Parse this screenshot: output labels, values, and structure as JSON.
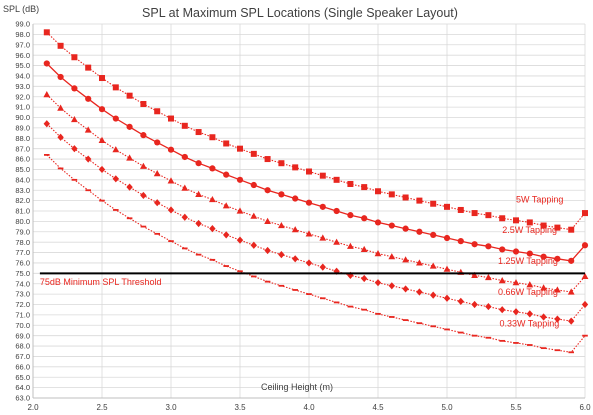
{
  "chart_data": {
    "type": "line",
    "title": "SPL at Maximum SPL Locations (Single Speaker Layout)",
    "xlabel": "Ceiling Height (m)",
    "ylabel": "SPL (dB)",
    "xlim": [
      2.0,
      6.0
    ],
    "ylim": [
      63.0,
      99.0
    ],
    "x_ticks": [
      2.0,
      2.5,
      3.0,
      3.5,
      4.0,
      4.5,
      5.0,
      5.5,
      6.0
    ],
    "y_tick_step": 1.0,
    "grid": true,
    "series": [
      {
        "name": "5W Tapping",
        "color": "#e8261f",
        "marker": "square",
        "line": "dotted",
        "x": [
          2.1,
          2.2,
          2.3,
          2.4,
          2.5,
          2.6,
          2.7,
          2.8,
          2.9,
          3.0,
          3.1,
          3.2,
          3.3,
          3.4,
          3.5,
          3.6,
          3.7,
          3.8,
          3.9,
          4.0,
          4.1,
          4.2,
          4.3,
          4.4,
          4.5,
          4.6,
          4.7,
          4.8,
          4.9,
          5.0,
          5.1,
          5.2,
          5.3,
          5.4,
          5.5,
          5.6,
          5.7,
          5.8,
          5.9,
          6.0
        ],
        "values": [
          98.2,
          96.9,
          95.8,
          94.8,
          93.8,
          92.9,
          92.1,
          91.3,
          90.6,
          89.9,
          89.2,
          88.6,
          88.1,
          87.5,
          87.0,
          86.5,
          86.0,
          85.6,
          85.2,
          84.8,
          84.4,
          84.0,
          83.6,
          83.3,
          82.9,
          82.6,
          82.3,
          82.0,
          81.7,
          81.4,
          81.1,
          80.8,
          80.6,
          80.3,
          80.1,
          79.9,
          79.6,
          79.4,
          79.2,
          80.8
        ]
      },
      {
        "name": "2.5W Tapping",
        "color": "#e8261f",
        "marker": "circle",
        "line": "solid",
        "x": [
          2.1,
          2.2,
          2.3,
          2.4,
          2.5,
          2.6,
          2.7,
          2.8,
          2.9,
          3.0,
          3.1,
          3.2,
          3.3,
          3.4,
          3.5,
          3.6,
          3.7,
          3.8,
          3.9,
          4.0,
          4.1,
          4.2,
          4.3,
          4.4,
          4.5,
          4.6,
          4.7,
          4.8,
          4.9,
          5.0,
          5.1,
          5.2,
          5.3,
          5.4,
          5.5,
          5.6,
          5.7,
          5.8,
          5.9,
          6.0
        ],
        "values": [
          95.2,
          93.9,
          92.8,
          91.8,
          90.8,
          89.9,
          89.1,
          88.3,
          87.6,
          86.9,
          86.2,
          85.6,
          85.1,
          84.5,
          84.0,
          83.5,
          83.0,
          82.6,
          82.2,
          81.8,
          81.4,
          81.0,
          80.6,
          80.3,
          79.9,
          79.6,
          79.3,
          79.0,
          78.7,
          78.4,
          78.1,
          77.8,
          77.6,
          77.3,
          77.1,
          76.9,
          76.6,
          76.4,
          76.2,
          77.7
        ]
      },
      {
        "name": "1.25W Tapping",
        "color": "#e8261f",
        "marker": "triangle",
        "line": "dotted",
        "x": [
          2.1,
          2.2,
          2.3,
          2.4,
          2.5,
          2.6,
          2.7,
          2.8,
          2.9,
          3.0,
          3.1,
          3.2,
          3.3,
          3.4,
          3.5,
          3.6,
          3.7,
          3.8,
          3.9,
          4.0,
          4.1,
          4.2,
          4.3,
          4.4,
          4.5,
          4.6,
          4.7,
          4.8,
          4.9,
          5.0,
          5.1,
          5.2,
          5.3,
          5.4,
          5.5,
          5.6,
          5.7,
          5.8,
          5.9,
          6.0
        ],
        "values": [
          92.2,
          90.9,
          89.8,
          88.8,
          87.8,
          86.9,
          86.1,
          85.3,
          84.6,
          83.9,
          83.2,
          82.6,
          82.1,
          81.5,
          81.0,
          80.5,
          80.0,
          79.6,
          79.2,
          78.8,
          78.4,
          78.0,
          77.6,
          77.3,
          76.9,
          76.6,
          76.3,
          76.0,
          75.7,
          75.4,
          75.1,
          74.8,
          74.6,
          74.3,
          74.1,
          73.9,
          73.6,
          73.4,
          73.2,
          74.7
        ]
      },
      {
        "name": "0.66W Tapping",
        "color": "#e8261f",
        "marker": "diamond",
        "line": "dotted",
        "x": [
          2.1,
          2.2,
          2.3,
          2.4,
          2.5,
          2.6,
          2.7,
          2.8,
          2.9,
          3.0,
          3.1,
          3.2,
          3.3,
          3.4,
          3.5,
          3.6,
          3.7,
          3.8,
          3.9,
          4.0,
          4.1,
          4.2,
          4.3,
          4.4,
          4.5,
          4.6,
          4.7,
          4.8,
          4.9,
          5.0,
          5.1,
          5.2,
          5.3,
          5.4,
          5.5,
          5.6,
          5.7,
          5.8,
          5.9,
          6.0
        ],
        "values": [
          89.4,
          88.1,
          87.0,
          86.0,
          85.0,
          84.1,
          83.3,
          82.5,
          81.8,
          81.1,
          80.4,
          79.8,
          79.3,
          78.7,
          78.2,
          77.7,
          77.2,
          76.8,
          76.4,
          76.0,
          75.6,
          75.2,
          74.8,
          74.5,
          74.1,
          73.8,
          73.5,
          73.2,
          72.9,
          72.6,
          72.3,
          72.0,
          71.8,
          71.5,
          71.3,
          71.1,
          70.8,
          70.6,
          70.4,
          72.0
        ]
      },
      {
        "name": "0.33W Tapping",
        "color": "#e8261f",
        "marker": "dash",
        "line": "dotted",
        "x": [
          2.1,
          2.2,
          2.3,
          2.4,
          2.5,
          2.6,
          2.7,
          2.8,
          2.9,
          3.0,
          3.1,
          3.2,
          3.3,
          3.4,
          3.5,
          3.6,
          3.7,
          3.8,
          3.9,
          4.0,
          4.1,
          4.2,
          4.3,
          4.4,
          4.5,
          4.6,
          4.7,
          4.8,
          4.9,
          5.0,
          5.1,
          5.2,
          5.3,
          5.4,
          5.5,
          5.6,
          5.7,
          5.8,
          5.9,
          6.0
        ],
        "values": [
          86.4,
          85.1,
          84.0,
          83.0,
          82.0,
          81.1,
          80.3,
          79.5,
          78.8,
          78.1,
          77.4,
          76.8,
          76.3,
          75.7,
          75.2,
          74.7,
          74.2,
          73.8,
          73.4,
          73.0,
          72.6,
          72.2,
          71.8,
          71.5,
          71.1,
          70.8,
          70.5,
          70.2,
          69.9,
          69.6,
          69.3,
          69.0,
          68.8,
          68.5,
          68.3,
          68.1,
          67.8,
          67.6,
          67.4,
          69.0
        ]
      }
    ],
    "series_labels": [
      {
        "text": "5W Tapping",
        "x": 5.5,
        "y": 81.8
      },
      {
        "text": "2.5W Tapping",
        "x": 5.4,
        "y": 78.9
      },
      {
        "text": "1.25W Tapping",
        "x": 5.37,
        "y": 75.9
      },
      {
        "text": "0.66W Tapping",
        "x": 5.37,
        "y": 72.9
      },
      {
        "text": "0.33W Tapping",
        "x": 5.38,
        "y": 69.9
      }
    ],
    "threshold": {
      "label": "75dB Minimum SPL Threshold",
      "value": 75.0,
      "color": "#000000",
      "label_color": "#e8261f",
      "label_x": 2.05,
      "label_y": 73.9
    }
  }
}
